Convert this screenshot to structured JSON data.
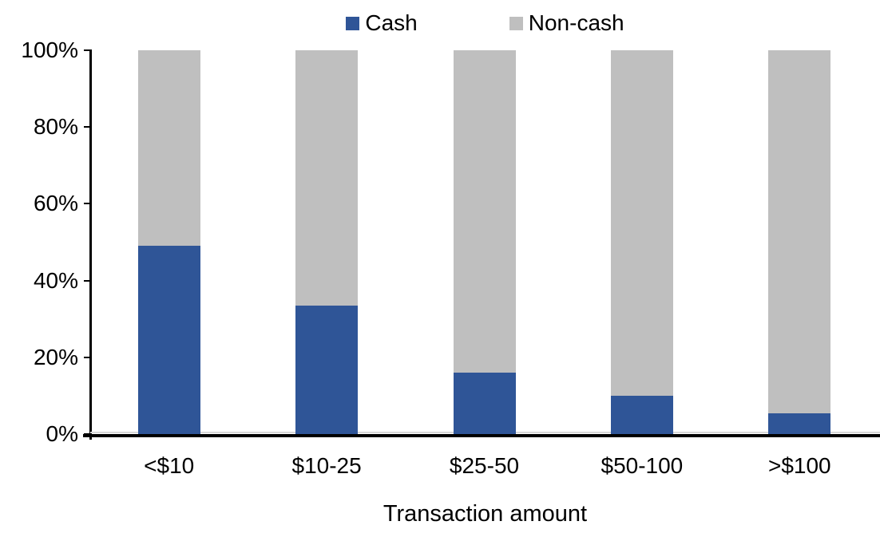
{
  "chart_data": {
    "type": "bar",
    "stacked": true,
    "orientation": "vertical",
    "title": "",
    "xlabel": "Transaction amount",
    "ylabel": "",
    "categories": [
      "<$10",
      "$10-25",
      "$25-50",
      "$50-100",
      ">$100"
    ],
    "series": [
      {
        "name": "Cash",
        "color": "#2F5597",
        "values": [
          49,
          33.5,
          16,
          10,
          5.5
        ]
      },
      {
        "name": "Non-cash",
        "color": "#BFBFBF",
        "values": [
          51,
          66.5,
          84,
          90,
          94.5
        ]
      }
    ],
    "ylim": [
      0,
      100
    ],
    "y_ticks": [
      "0%",
      "20%",
      "40%",
      "60%",
      "80%",
      "100%"
    ],
    "legend_position": "top-center",
    "grid": false,
    "axis_color": "#000000",
    "background_color": "#FFFFFF"
  }
}
